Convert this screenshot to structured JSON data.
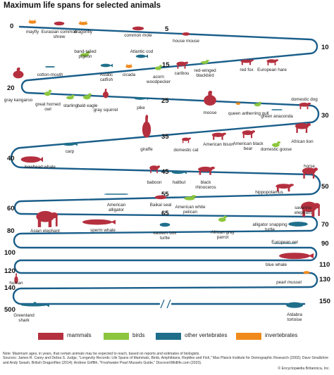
{
  "title": "Maximum life spans for selected animals",
  "colors": {
    "track": "#1a5e8a",
    "mammals": "#b5303f",
    "birds": "#8cc63e",
    "other_vertebrates": "#1f6f8b",
    "invertebrates": "#f08a1c"
  },
  "scale_left": [
    "0",
    "20",
    "40",
    "60",
    "80",
    "100",
    "120",
    "140",
    "500"
  ],
  "scale_right": [
    "10",
    "30",
    "50",
    "70",
    "90",
    "110",
    "130",
    "150"
  ],
  "scale_inline": [
    "5",
    "15",
    "25",
    "35",
    "45",
    "55",
    "65"
  ],
  "animals": [
    {
      "label": "mayfly",
      "group": "invertebrates",
      "icon": "insect-icon"
    },
    {
      "label": "Eurasian common shrew",
      "group": "mammals",
      "icon": "shrew-icon"
    },
    {
      "label": "dragonfly",
      "group": "invertebrates",
      "icon": "dragonfly-icon"
    },
    {
      "label": "common mole",
      "group": "mammals",
      "icon": "mole-icon"
    },
    {
      "label": "house mouse",
      "group": "mammals",
      "icon": "mouse-icon"
    },
    {
      "label": "band-tailed pigeon",
      "group": "birds",
      "icon": "pigeon-icon"
    },
    {
      "label": "Atlantic cod",
      "group": "other_vertebrates",
      "icon": "fish-icon"
    },
    {
      "label": "gray kangaroo",
      "group": "mammals",
      "icon": "kangaroo-icon"
    },
    {
      "label": "cotton-mouth",
      "group": "other_vertebrates",
      "icon": "snake-icon"
    },
    {
      "label": "Asiatic catfish",
      "group": "other_vertebrates",
      "icon": "catfish-icon"
    },
    {
      "label": "cicada",
      "group": "invertebrates",
      "icon": "cicada-icon"
    },
    {
      "label": "acorn woodpecker",
      "group": "birds",
      "icon": "woodpecker-icon"
    },
    {
      "label": "caribou",
      "group": "mammals",
      "icon": "caribou-icon"
    },
    {
      "label": "red-winged blackbird",
      "group": "birds",
      "icon": "blackbird-icon"
    },
    {
      "label": "red fox",
      "group": "mammals",
      "icon": "fox-icon"
    },
    {
      "label": "European hare",
      "group": "mammals",
      "icon": "hare-icon"
    },
    {
      "label": "great horned owl",
      "group": "birds",
      "icon": "owl-icon"
    },
    {
      "label": "starling",
      "group": "birds",
      "icon": "starling-icon"
    },
    {
      "label": "bald eagle",
      "group": "birds",
      "icon": "eagle-icon"
    },
    {
      "label": "gray squirrel",
      "group": "mammals",
      "icon": "squirrel-icon"
    },
    {
      "label": "pike",
      "group": "other_vertebrates",
      "icon": "pike-icon"
    },
    {
      "label": "moose",
      "group": "mammals",
      "icon": "moose-icon"
    },
    {
      "label": "queen ant",
      "group": "invertebrates",
      "icon": "ant-icon"
    },
    {
      "label": "herring gull",
      "group": "birds",
      "icon": "gull-icon"
    },
    {
      "label": "green anaconda",
      "group": "other_vertebrates",
      "icon": "anaconda-icon"
    },
    {
      "label": "domestic dog",
      "group": "mammals",
      "icon": "dog-icon"
    },
    {
      "label": "carp",
      "group": "other_vertebrates",
      "icon": "carp-icon"
    },
    {
      "label": "giraffe",
      "group": "mammals",
      "icon": "giraffe-icon"
    },
    {
      "label": "domestic cat",
      "group": "mammals",
      "icon": "cat-icon"
    },
    {
      "label": "American bison",
      "group": "mammals",
      "icon": "bison-icon"
    },
    {
      "label": "American black bear",
      "group": "mammals",
      "icon": "bear-icon"
    },
    {
      "label": "domestic goose",
      "group": "birds",
      "icon": "goose-icon"
    },
    {
      "label": "African lion",
      "group": "mammals",
      "icon": "lion-icon"
    },
    {
      "label": "bowhead whale",
      "group": "mammals",
      "icon": "bowhead-whale-icon"
    },
    {
      "label": "baboon",
      "group": "mammals",
      "icon": "baboon-icon"
    },
    {
      "label": "halibut",
      "group": "other_vertebrates",
      "icon": "halibut-icon"
    },
    {
      "label": "black rhinoceros",
      "group": "mammals",
      "icon": "rhino-icon"
    },
    {
      "label": "horse",
      "group": "mammals",
      "icon": "horse-icon"
    },
    {
      "label": "hippopotamus",
      "group": "mammals",
      "icon": "hippo-icon"
    },
    {
      "label": "American alligator",
      "group": "other_vertebrates",
      "icon": "alligator-icon"
    },
    {
      "label": "Baikal seal",
      "group": "mammals",
      "icon": "seal-icon"
    },
    {
      "label": "American white pelican",
      "group": "birds",
      "icon": "pelican-icon"
    },
    {
      "label": "Asian elephant",
      "group": "mammals",
      "icon": "elephant-icon"
    },
    {
      "label": "sperm whale",
      "group": "mammals",
      "icon": "sperm-whale-icon"
    },
    {
      "label": "eastern box turtle",
      "group": "other_vertebrates",
      "icon": "box-turtle-icon"
    },
    {
      "label": "African gray parrot",
      "group": "birds",
      "icon": "parrot-icon"
    },
    {
      "label": "alligator snapping turtle",
      "group": "other_vertebrates",
      "icon": "snapping-turtle-icon"
    },
    {
      "label": "savanna elephant",
      "group": "mammals",
      "icon": "savanna-elephant-icon"
    },
    {
      "label": "European eel",
      "group": "other_vertebrates",
      "icon": "eel-icon"
    },
    {
      "label": "blue whale",
      "group": "mammals",
      "icon": "blue-whale-icon"
    },
    {
      "label": "human",
      "group": "mammals",
      "icon": "human-icon"
    },
    {
      "label": "pearl mussel",
      "group": "invertebrates",
      "icon": "mussel-icon"
    },
    {
      "label": "Greenland shark",
      "group": "other_vertebrates",
      "icon": "shark-icon"
    },
    {
      "label": "Aldabra tortoise",
      "group": "other_vertebrates",
      "icon": "tortoise-icon"
    }
  ],
  "legend": [
    {
      "key": "mammals",
      "label": "mammals",
      "color": "#b5303f"
    },
    {
      "key": "birds",
      "label": "birds",
      "color": "#8cc63e"
    },
    {
      "key": "other_vertebrates",
      "label": "other vertebrates",
      "color": "#1f6f8b"
    },
    {
      "key": "invertebrates",
      "label": "invertebrates",
      "color": "#f08a1c"
    }
  ],
  "note": "Note: Maximum ages, in years, that certain animals may be expected to reach, based on reports and estimates of biologists.",
  "sources": "Sources: James R. Carey and Debra S. Judge, \"Longevity Records: Life Spans of Mammals, Birds, Amphibians, Reptiles and Fish,\" Max Planck Institute for Demographic Research (2002); Dave Smallshire and Andy Swash, British Dragonflies (2014); Andrew Griffith, \"Freshwater Pearl Mussels Guide,\" DiscoverWildlife.com (2023).",
  "credit": "© Encyclopædia Britannica, Inc."
}
